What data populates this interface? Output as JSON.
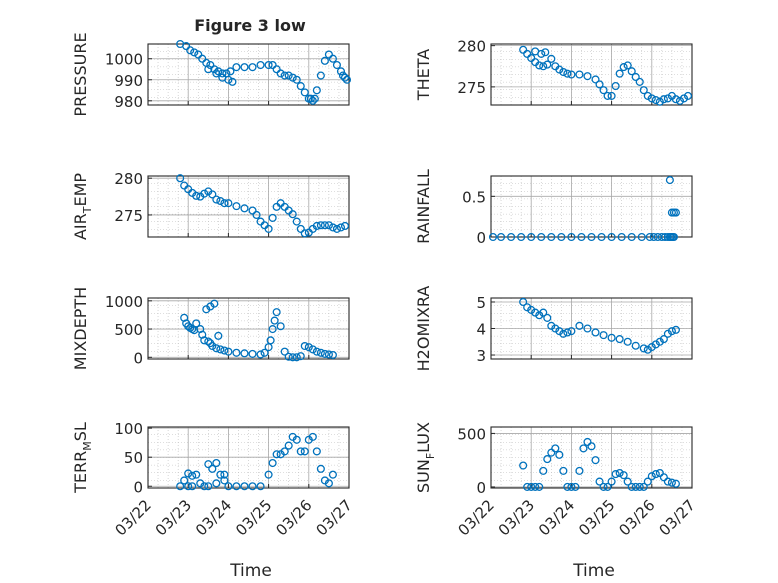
{
  "title": "Figure 3 low",
  "colors": {
    "marker": "#0072BD",
    "grid": "#bdbdbd",
    "axis": "#262626"
  },
  "x_ticks": [
    "03/22",
    "03/23",
    "03/24",
    "03/25",
    "03/26",
    "03/27"
  ],
  "xlabel": "Time",
  "chart_data": [
    {
      "type": "scatter",
      "ylabel": "PRESSURE",
      "ylim": [
        978,
        1007
      ],
      "yticks": [
        980,
        990,
        1000
      ],
      "x": [
        0.8,
        0.95,
        1.05,
        1.15,
        1.25,
        1.35,
        1.45,
        1.55,
        1.65,
        1.75,
        1.85,
        1.95,
        2.05,
        2.2,
        2.4,
        2.6,
        2.8,
        3.0,
        3.1,
        3.2,
        3.3,
        3.4,
        3.5,
        3.6,
        3.7,
        3.8,
        3.9,
        4.0,
        4.05,
        4.1,
        4.15,
        4.2,
        4.3,
        4.4,
        4.5,
        4.6,
        4.7,
        4.8,
        4.85,
        4.9,
        4.95,
        1.5,
        1.7,
        1.85,
        2.0,
        2.1
      ],
      "y": [
        1007,
        1006,
        1004,
        1003,
        1002,
        1000,
        998,
        997,
        995,
        994,
        993,
        993,
        994,
        996,
        996,
        996,
        997,
        997,
        997,
        995,
        993,
        992,
        992,
        991,
        990,
        987,
        984,
        981,
        981,
        980,
        981,
        985,
        992,
        999,
        1002,
        1000,
        997,
        994,
        992,
        991,
        990,
        995,
        993,
        991,
        990,
        989
      ]
    },
    {
      "type": "scatter",
      "ylabel": "THETA",
      "ylim": [
        272.8,
        280.2
      ],
      "yticks": [
        275,
        280
      ],
      "x": [
        0.8,
        0.9,
        1.0,
        1.1,
        1.2,
        1.3,
        1.4,
        1.5,
        1.6,
        1.7,
        1.8,
        1.9,
        2.0,
        2.2,
        2.4,
        2.6,
        2.7,
        2.8,
        2.9,
        3.0,
        3.1,
        3.2,
        3.3,
        3.4,
        3.5,
        3.6,
        3.7,
        3.8,
        3.9,
        4.0,
        4.1,
        4.2,
        4.3,
        4.4,
        4.5,
        4.6,
        4.7,
        4.8,
        4.9,
        1.1,
        1.25,
        1.35
      ],
      "y": [
        279.5,
        279.0,
        278.5,
        278.0,
        277.6,
        277.5,
        277.7,
        278.4,
        277.5,
        277.1,
        276.8,
        276.6,
        276.5,
        276.5,
        276.3,
        275.9,
        275.3,
        274.6,
        273.9,
        273.9,
        275.1,
        276.6,
        277.4,
        277.6,
        276.9,
        276.2,
        275.6,
        274.6,
        273.9,
        273.6,
        273.4,
        273.2,
        273.5,
        273.6,
        273.9,
        273.5,
        273.3,
        273.6,
        273.9,
        279.3,
        279.0,
        279.2
      ]
    },
    {
      "type": "scatter",
      "ylabel": "AIR_TEMP",
      "ylabel_main": "AIR",
      "ylabel_sub": "T",
      "ylabel_rest": "EMP",
      "ylim": [
        272,
        280.3
      ],
      "yticks": [
        275,
        280
      ],
      "x": [
        0.8,
        0.9,
        1.0,
        1.1,
        1.2,
        1.3,
        1.4,
        1.5,
        1.6,
        1.7,
        1.8,
        1.9,
        2.0,
        2.2,
        2.4,
        2.6,
        2.7,
        2.8,
        2.9,
        3.0,
        3.1,
        3.2,
        3.3,
        3.4,
        3.5,
        3.6,
        3.7,
        3.8,
        3.9,
        4.0,
        4.1,
        4.2,
        4.3,
        4.4,
        4.5,
        4.6,
        4.7,
        4.8,
        4.9
      ],
      "y": [
        280,
        279,
        278.5,
        278,
        277.6,
        277.5,
        277.9,
        278.2,
        277.8,
        277.1,
        276.9,
        276.6,
        276.6,
        276.2,
        275.9,
        275.6,
        275,
        274.1,
        273.6,
        273.1,
        274.6,
        276.1,
        276.6,
        276.1,
        275.6,
        275.1,
        274.1,
        273.1,
        272.5,
        272.6,
        273.1,
        273.5,
        273.6,
        273.6,
        273.6,
        273.3,
        273.1,
        273.3,
        273.5
      ]
    },
    {
      "type": "scatter",
      "ylabel": "RAINFALL",
      "ylim": [
        0,
        0.75
      ],
      "yticks": [
        0,
        0.5
      ],
      "x": [
        0.05,
        0.25,
        0.5,
        0.75,
        1.0,
        1.25,
        1.5,
        1.75,
        2.0,
        2.25,
        2.5,
        2.75,
        3.0,
        3.25,
        3.5,
        3.75,
        3.95,
        4.05,
        4.15,
        4.25,
        4.33,
        4.4,
        4.45,
        4.48,
        4.52,
        4.55,
        4.45,
        4.5,
        4.55,
        4.6
      ],
      "y": [
        0,
        0,
        0,
        0,
        0,
        0,
        0,
        0,
        0,
        0,
        0,
        0,
        0,
        0,
        0,
        0,
        0,
        0,
        0,
        0,
        0,
        0,
        0,
        0,
        0,
        0,
        0.7,
        0.3,
        0.3,
        0.3
      ]
    },
    {
      "type": "scatter",
      "ylabel": "MIXDEPTH",
      "ylim": [
        -30,
        1050
      ],
      "yticks": [
        0,
        500,
        1000
      ],
      "x": [
        0.9,
        0.95,
        1.0,
        1.05,
        1.1,
        1.15,
        1.2,
        1.3,
        1.35,
        1.4,
        1.5,
        1.55,
        1.6,
        1.7,
        1.8,
        1.9,
        2.0,
        2.2,
        2.4,
        2.6,
        2.8,
        2.9,
        3.0,
        3.05,
        3.1,
        3.15,
        3.2,
        3.3,
        3.4,
        3.5,
        3.6,
        3.7,
        3.8,
        3.9,
        4.0,
        4.1,
        4.2,
        4.3,
        4.4,
        4.5,
        4.6,
        1.45,
        1.55,
        1.65,
        1.75
      ],
      "y": [
        700,
        600,
        550,
        520,
        500,
        480,
        600,
        500,
        400,
        300,
        280,
        250,
        200,
        160,
        140,
        120,
        100,
        80,
        70,
        60,
        50,
        80,
        180,
        300,
        500,
        650,
        800,
        550,
        100,
        10,
        0,
        0,
        20,
        200,
        180,
        140,
        100,
        80,
        60,
        50,
        40,
        850,
        900,
        950,
        380
      ]
    },
    {
      "type": "scatter",
      "ylabel": "H2OMIXRA",
      "ylim": [
        2.85,
        5.15
      ],
      "yticks": [
        3,
        4,
        5
      ],
      "x": [
        0.8,
        0.9,
        1.0,
        1.1,
        1.2,
        1.3,
        1.4,
        1.5,
        1.6,
        1.7,
        1.8,
        1.9,
        2.0,
        2.2,
        2.4,
        2.6,
        2.8,
        3.0,
        3.2,
        3.4,
        3.6,
        3.8,
        3.9,
        4.0,
        4.1,
        4.2,
        4.3,
        4.4,
        4.5,
        4.6
      ],
      "y": [
        5,
        4.8,
        4.7,
        4.6,
        4.5,
        4.6,
        4.4,
        4.1,
        4,
        3.9,
        3.8,
        3.85,
        3.9,
        4.1,
        4,
        3.85,
        3.75,
        3.65,
        3.6,
        3.5,
        3.35,
        3.25,
        3.2,
        3.3,
        3.4,
        3.5,
        3.6,
        3.8,
        3.9,
        3.95
      ]
    },
    {
      "type": "scatter",
      "ylabel": "TERR_MSL",
      "ylabel_main": "TERR",
      "ylabel_sub": "M",
      "ylabel_rest": "SL",
      "ylim": [
        -3,
        102
      ],
      "yticks": [
        0,
        50,
        100
      ],
      "x": [
        0.8,
        0.9,
        1.0,
        1.1,
        1.2,
        1.3,
        1.4,
        1.5,
        1.6,
        1.7,
        1.8,
        1.9,
        2.0,
        2.2,
        2.4,
        2.6,
        2.8,
        3.0,
        3.1,
        3.2,
        3.3,
        3.4,
        3.5,
        3.6,
        3.7,
        3.8,
        3.9,
        4.0,
        4.1,
        4.2,
        4.3,
        4.4,
        4.5,
        4.6,
        1.0,
        1.1,
        1.5,
        1.7,
        1.9
      ],
      "y": [
        0,
        10,
        0,
        0,
        20,
        5,
        0,
        0,
        30,
        40,
        20,
        10,
        0,
        0,
        0,
        0,
        0,
        20,
        40,
        55,
        55,
        60,
        70,
        85,
        80,
        60,
        60,
        80,
        85,
        60,
        30,
        10,
        5,
        20,
        22,
        18,
        38,
        5,
        20
      ]
    },
    {
      "type": "scatter",
      "ylabel": "SUN_FLUX",
      "ylabel_main": "SUN",
      "ylabel_sub": "F",
      "ylabel_rest": "LUX",
      "ylim": [
        -10,
        560
      ],
      "yticks": [
        0,
        500
      ],
      "x": [
        0.8,
        0.9,
        1.0,
        1.1,
        1.2,
        1.3,
        1.4,
        1.5,
        1.6,
        1.7,
        1.8,
        1.9,
        2.0,
        2.1,
        2.2,
        2.3,
        2.4,
        2.5,
        2.6,
        2.7,
        2.8,
        2.9,
        3.0,
        3.1,
        3.2,
        3.3,
        3.4,
        3.5,
        3.6,
        3.7,
        3.8,
        3.9,
        4.0,
        4.1,
        4.2,
        4.3,
        4.4,
        4.5,
        4.6
      ],
      "y": [
        200,
        0,
        0,
        0,
        0,
        150,
        260,
        320,
        360,
        300,
        150,
        0,
        0,
        0,
        150,
        360,
        420,
        380,
        250,
        50,
        0,
        0,
        50,
        120,
        130,
        110,
        50,
        0,
        0,
        0,
        0,
        50,
        100,
        120,
        130,
        90,
        50,
        40,
        30
      ]
    }
  ]
}
